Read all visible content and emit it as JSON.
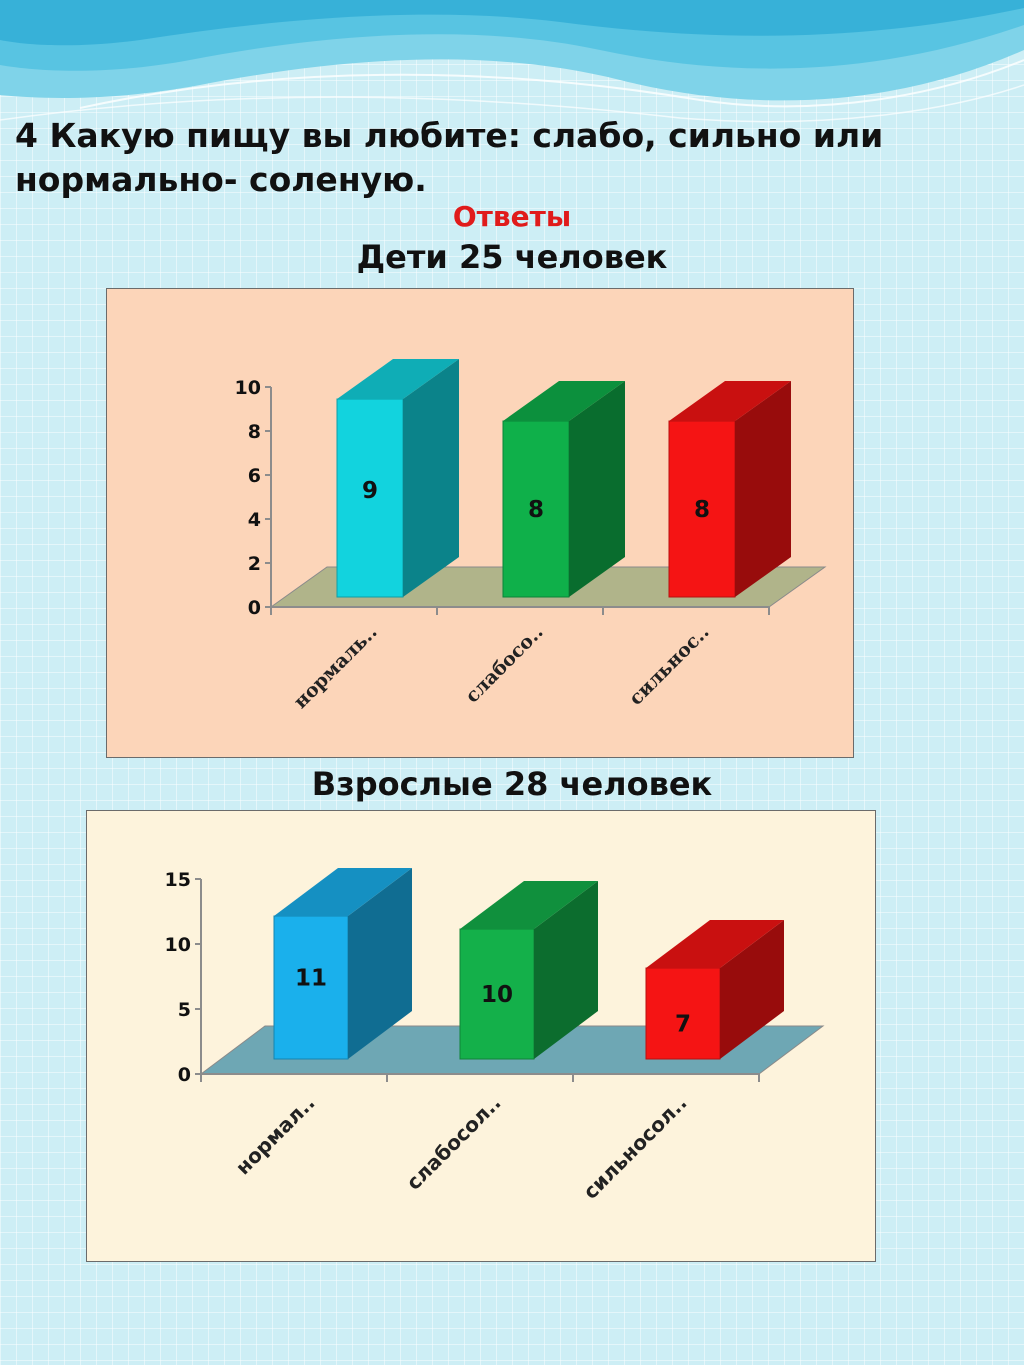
{
  "slide": {
    "question_line1": "4 Какую пищу вы любите: слабо, сильно или",
    "question_line2": "нормально- соленую.",
    "answers_label": "Ответы",
    "kids_title": "Дети 25 человек",
    "adults_title": "Взрослые 28 человек"
  },
  "colors": {
    "kids_background": "#fcd5b9",
    "adults_background": "#fdf3dc",
    "kids_floor": "#b0b48a",
    "adults_floor": "#6ea7b4",
    "answers_label": "#e01b1b"
  },
  "chart_data": [
    {
      "type": "bar",
      "categories": [
        "нормаль..",
        "слабосо..",
        "сильнос.."
      ],
      "values": [
        9,
        8,
        8
      ],
      "ylim": [
        0,
        10
      ],
      "yticks": [
        0,
        2,
        4,
        6,
        8,
        10
      ],
      "colors": [
        "#12d3de",
        "#0fb04a",
        "#f51414"
      ],
      "data_labels": true,
      "grid": false,
      "style": "3d-column"
    },
    {
      "type": "bar",
      "categories": [
        "нормал..",
        "слабосол..",
        "сильносол.."
      ],
      "values": [
        11,
        10,
        7
      ],
      "ylim": [
        0,
        15
      ],
      "yticks": [
        0,
        5,
        10,
        15
      ],
      "colors": [
        "#1ab0ec",
        "#14b04a",
        "#f51414"
      ],
      "data_labels": true,
      "grid": false,
      "style": "3d-column"
    }
  ]
}
